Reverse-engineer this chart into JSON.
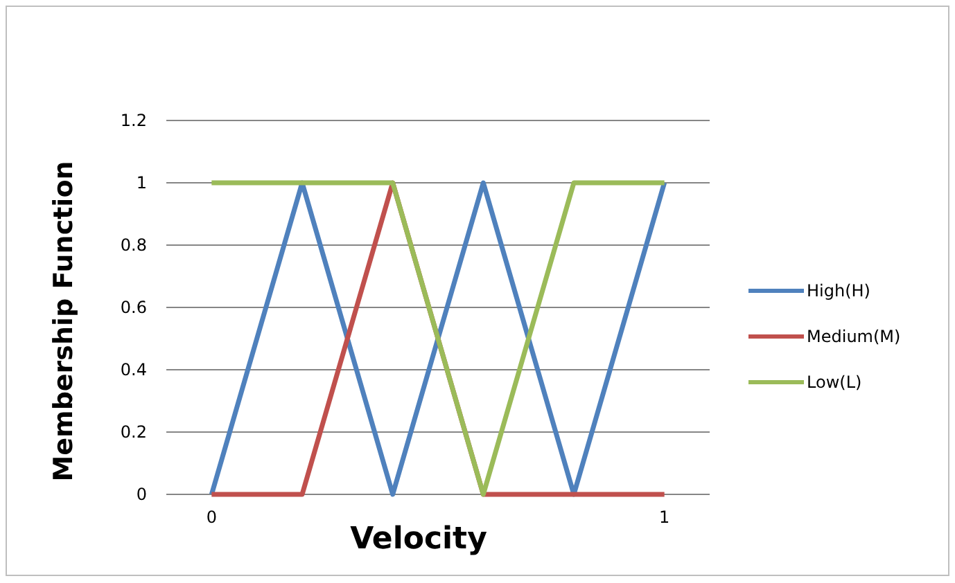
{
  "chart_data": {
    "type": "line",
    "xlabel": "Velocity",
    "ylabel": "Membership Function",
    "categories": [
      "0",
      null,
      null,
      null,
      null,
      "1"
    ],
    "series": [
      {
        "name": "High(H)",
        "color": "#4f81bd",
        "values": [
          0,
          1,
          0,
          1,
          0,
          1
        ]
      },
      {
        "name": "Medium(M)",
        "color": "#c0504d",
        "values": [
          0,
          0,
          1,
          0,
          0,
          0
        ]
      },
      {
        "name": "Low(L)",
        "color": "#9bbb59",
        "values": [
          1,
          1,
          1,
          0,
          1,
          1
        ]
      }
    ],
    "ylim": [
      0,
      1.2
    ],
    "yticks": [
      0,
      0.2,
      0.4,
      0.6,
      0.8,
      1,
      1.2
    ],
    "grid": "y",
    "legend": "right",
    "marker": "none",
    "line_style": "solid"
  }
}
